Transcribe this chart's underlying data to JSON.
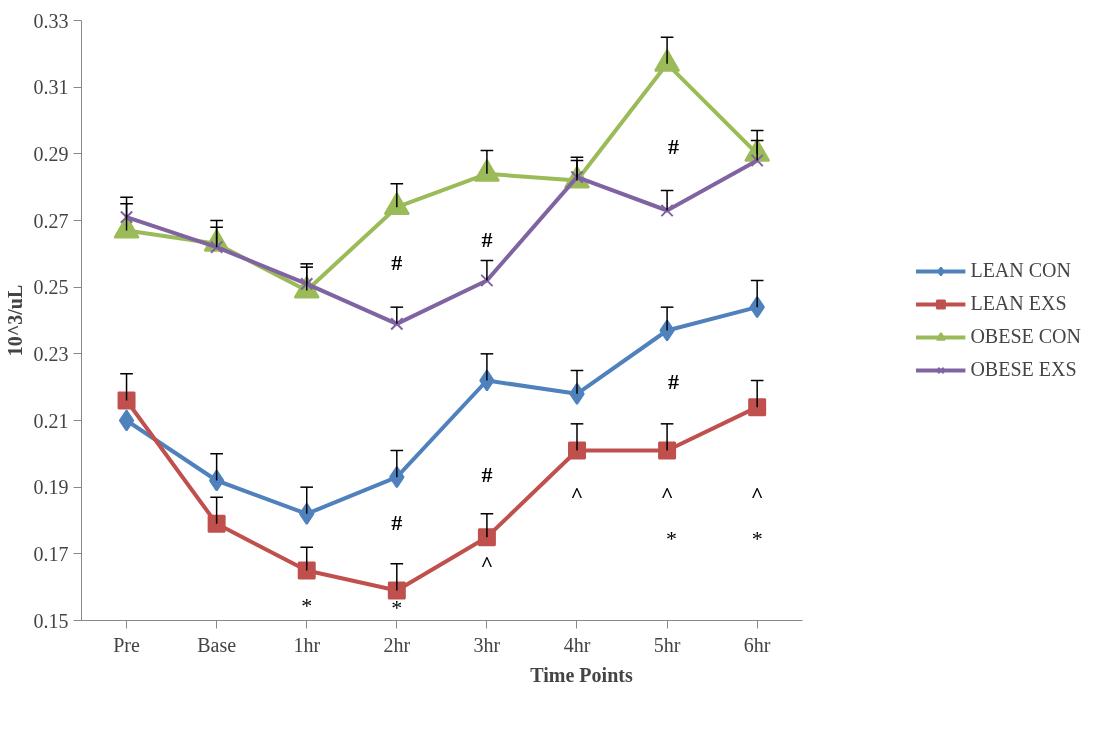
{
  "chart_data": {
    "type": "line",
    "xlabel": "Time Points",
    "ylabel": "10^3/uL",
    "categories": [
      "Pre",
      "Base",
      "1hr",
      "2hr",
      "3hr",
      "4hr",
      "5hr",
      "6hr"
    ],
    "ylim": [
      0.15,
      0.33
    ],
    "yticks": [
      {
        "value": 0.15,
        "label": "0.15"
      },
      {
        "value": 0.17,
        "label": "0.17"
      },
      {
        "value": 0.19,
        "label": "0.19"
      },
      {
        "value": 0.21,
        "label": "0.21"
      },
      {
        "value": 0.23,
        "label": "0.23"
      },
      {
        "value": 0.25,
        "label": "0.25"
      },
      {
        "value": 0.27,
        "label": "0.27"
      },
      {
        "value": 0.29,
        "label": "0.29"
      },
      {
        "value": 0.31,
        "label": "0.31"
      },
      {
        "value": 0.33,
        "label": "0.33"
      }
    ],
    "grid": false,
    "legend": "right",
    "line_style": "solid",
    "series": [
      {
        "name": "LEAN CON",
        "color": "#4f81bd",
        "marker": "diamond",
        "values": [
          0.21,
          0.192,
          0.182,
          0.193,
          0.222,
          0.218,
          0.237,
          0.244
        ],
        "errors": [
          null,
          [
            0.192,
            0.2
          ],
          [
            0.182,
            0.19
          ],
          [
            0.193,
            0.201
          ],
          [
            0.222,
            0.23
          ],
          [
            0.218,
            0.225
          ],
          [
            0.237,
            0.244
          ],
          [
            0.244,
            0.252
          ]
        ]
      },
      {
        "name": "LEAN EXS",
        "color": "#c0504d",
        "marker": "square",
        "values": [
          0.216,
          0.179,
          0.165,
          0.159,
          0.175,
          0.201,
          0.201,
          0.214
        ],
        "errors": [
          [
            0.216,
            0.224
          ],
          [
            0.179,
            0.187
          ],
          [
            0.165,
            0.172
          ],
          [
            0.159,
            0.167
          ],
          [
            0.175,
            0.182
          ],
          [
            0.201,
            0.209
          ],
          [
            0.201,
            0.209
          ],
          [
            0.214,
            0.222
          ]
        ]
      },
      {
        "name": "OBESE CON",
        "color": "#9bbb59",
        "marker": "triangle",
        "values": [
          0.267,
          0.263,
          0.249,
          0.274,
          0.284,
          0.282,
          0.317,
          0.29
        ],
        "errors": [
          [
            0.267,
            0.275
          ],
          [
            0.263,
            0.27
          ],
          [
            0.249,
            0.256
          ],
          [
            0.274,
            0.281
          ],
          [
            0.284,
            0.291
          ],
          [
            0.282,
            0.289
          ],
          [
            0.317,
            0.325
          ],
          [
            0.29,
            0.297
          ]
        ]
      },
      {
        "name": "OBESE EXS",
        "color": "#8064a2",
        "marker": "x",
        "values": [
          0.271,
          0.262,
          0.251,
          0.239,
          0.252,
          0.283,
          0.273,
          0.288
        ],
        "errors": [
          [
            0.271,
            0.277
          ],
          [
            0.262,
            0.268
          ],
          [
            0.251,
            0.257
          ],
          [
            0.239,
            0.244
          ],
          [
            0.252,
            0.258
          ],
          [
            0.283,
            0.288
          ],
          [
            0.273,
            0.279
          ],
          [
            0.288,
            0.294
          ]
        ]
      }
    ],
    "annotations": [
      "#",
      "#",
      "#",
      "#",
      "#",
      "#",
      "^",
      "^",
      "^",
      "^",
      "*",
      "*",
      "*",
      "*"
    ]
  }
}
